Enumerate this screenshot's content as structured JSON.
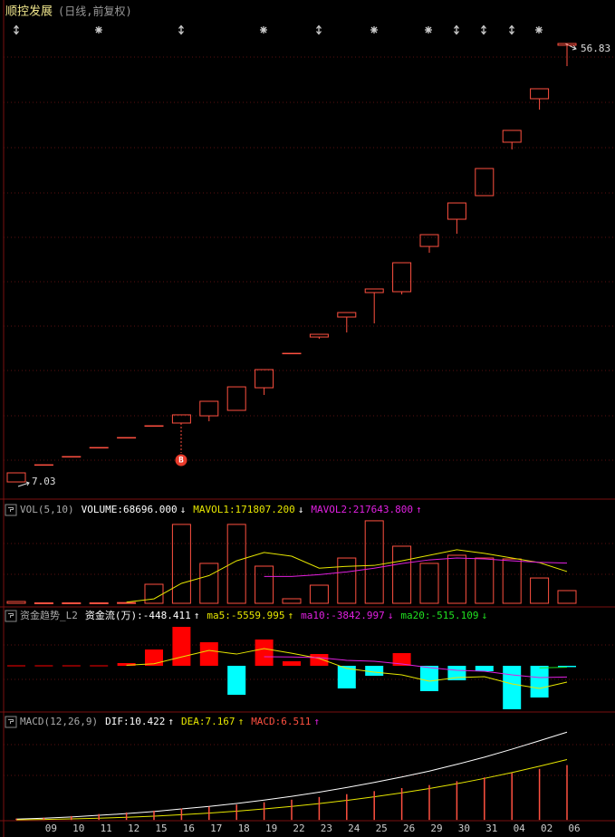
{
  "header": {
    "title": "顺控发展",
    "subtitle": "(日线,前复权)"
  },
  "chart_data": [
    {
      "type": "candlestick",
      "color": "#ff5040",
      "categories": [
        null,
        "09",
        "10",
        "11",
        "12",
        "15",
        "16",
        "17",
        "18",
        "19",
        "22",
        "23",
        "24",
        "25",
        "26",
        "29",
        "30",
        "31",
        "04",
        "02",
        "06"
      ],
      "open": [
        7.03,
        8.98,
        9.91,
        10.94,
        12.07,
        13.41,
        13.72,
        14.54,
        15.16,
        17.73,
        21.64,
        23.49,
        25.76,
        28.54,
        28.64,
        33.78,
        36.87,
        39.55,
        45.62,
        50.56,
        56.63
      ],
      "high": [
        8.06,
        8.98,
        9.91,
        10.94,
        12.07,
        13.41,
        14.65,
        16.19,
        17.83,
        19.79,
        21.64,
        23.8,
        26.27,
        28.95,
        31.93,
        35.12,
        38.72,
        42.63,
        46.96,
        51.69,
        56.83
      ],
      "low": [
        7.03,
        8.98,
        9.91,
        10.94,
        12.07,
        13.41,
        13.72,
        13.92,
        15.16,
        16.91,
        21.64,
        23.29,
        24.01,
        25.04,
        28.33,
        33.06,
        35.22,
        39.55,
        44.8,
        49.32,
        54.26
      ],
      "close": [
        8.06,
        8.98,
        9.91,
        10.94,
        12.07,
        13.41,
        14.65,
        16.19,
        17.83,
        19.79,
        21.64,
        23.8,
        26.27,
        28.95,
        31.93,
        35.12,
        38.72,
        42.63,
        46.96,
        51.69,
        56.83
      ],
      "low_mark": 7.03,
      "high_mark": 56.83,
      "signal": "B",
      "ylim": [
        5.18,
        59.2
      ]
    },
    {
      "type": "bar",
      "indicator": "VOL(5,10)",
      "ylim": [
        0,
        554000
      ],
      "series": [
        {
          "label": "VOLUME:68696.000",
          "arrow": "↓",
          "arrow_color": "#ffffff",
          "color": "#ff5040",
          "style": "hollow-bar",
          "values": [
            9800,
            2500,
            2500,
            2500,
            4000,
            103000,
            427000,
            216000,
            427000,
            201000,
            24500,
            98000,
            245000,
            446500,
            309000,
            216000,
            260000,
            245000,
            240000,
            137000,
            68696
          ]
        },
        {
          "label": "MAVOL1:171807.200",
          "arrow": "↓",
          "arrow_color": "#ffffff",
          "color": "#e6e600",
          "style": "line",
          "values": [
            null,
            null,
            null,
            null,
            6000,
            24000,
            108000,
            150000,
            230000,
            275000,
            255000,
            190000,
            200000,
            205000,
            230000,
            260000,
            290000,
            270000,
            245000,
            220000,
            171807.2
          ]
        },
        {
          "label": "MAVOL2:217643.800",
          "arrow": "↑",
          "arrow_color": "#e020e0",
          "color": "#e020e0",
          "style": "line",
          "values": [
            null,
            null,
            null,
            null,
            null,
            null,
            null,
            null,
            null,
            145000,
            145000,
            155000,
            170000,
            190000,
            215000,
            235000,
            245000,
            240000,
            230000,
            222000,
            217643.8
          ]
        }
      ]
    },
    {
      "type": "bar",
      "indicator": "资金趋势_L2",
      "ylim": [
        -15450,
        19158
      ],
      "series": [
        {
          "label": "资金流(万):-448.411",
          "arrow": "↑",
          "arrow_color": "#ffffff",
          "color": "#ff0000",
          "down_color": "#00ffff",
          "style": "signed-bar",
          "values": [
            150,
            150,
            150,
            150,
            927,
            5562,
            13287,
            8034,
            -9888,
            8961,
            1545,
            4017,
            -7725,
            -3399,
            4326,
            -8652,
            -4944,
            -1854,
            -14832,
            -10815,
            -448.411
          ]
        },
        {
          "label": "ma5:-5559.995",
          "arrow": "↑",
          "arrow_color": "#e6e600",
          "color": "#e6e600",
          "style": "line",
          "values": [
            null,
            null,
            null,
            null,
            200,
            700,
            3000,
            5250,
            4000,
            5870,
            4300,
            2500,
            -900,
            -2160,
            -3090,
            -5250,
            -4000,
            -3700,
            -6180,
            -7725,
            -5559.995
          ]
        },
        {
          "label": "ma10:-3842.997",
          "arrow": "↓",
          "arrow_color": "#e020e0",
          "color": "#e020e0",
          "style": "line",
          "values": [
            null,
            null,
            null,
            null,
            null,
            null,
            null,
            null,
            null,
            3090,
            3000,
            2780,
            1850,
            1545,
            618,
            -618,
            -1545,
            -1854,
            -3090,
            -4017,
            -3842.997
          ]
        },
        {
          "label": "ma20:-515.109",
          "arrow": "↓",
          "arrow_color": "#20e020",
          "color": "#20e020",
          "style": "line",
          "values": [
            null,
            null,
            null,
            null,
            null,
            null,
            null,
            null,
            null,
            null,
            null,
            null,
            null,
            null,
            null,
            null,
            null,
            null,
            null,
            -700,
            -515.109
          ]
        }
      ]
    },
    {
      "type": "bar",
      "indicator": "MACD(12,26,9)",
      "ylim": [
        -0.2,
        12.6
      ],
      "series": [
        {
          "label": "DIF:10.422",
          "arrow": "↑",
          "arrow_color": "#ffffff",
          "color": "#ffffff",
          "style": "line",
          "values": [
            0.1,
            0.2,
            0.35,
            0.55,
            0.75,
            1.0,
            1.3,
            1.6,
            1.95,
            2.35,
            2.8,
            3.3,
            3.85,
            4.45,
            5.1,
            5.8,
            6.6,
            7.45,
            8.4,
            9.4,
            10.422
          ]
        },
        {
          "label": "DEA:7.167",
          "arrow": "↑",
          "arrow_color": "#e6e600",
          "color": "#e6e600",
          "style": "line",
          "values": [
            0.02,
            0.06,
            0.12,
            0.2,
            0.31,
            0.45,
            0.62,
            0.81,
            1.04,
            1.3,
            1.6,
            1.94,
            2.32,
            2.74,
            3.21,
            3.73,
            4.3,
            4.93,
            5.62,
            6.37,
            7.167
          ]
        },
        {
          "label": "MACD:6.511",
          "arrow": "↑",
          "arrow_color": "#e020e0",
          "color": "#ff5040",
          "style": "stick",
          "values": [
            0.16,
            0.28,
            0.46,
            0.7,
            0.88,
            1.1,
            1.36,
            1.58,
            1.82,
            2.1,
            2.4,
            2.72,
            3.06,
            3.42,
            3.78,
            4.14,
            4.6,
            5.04,
            5.56,
            6.06,
            6.511
          ]
        }
      ]
    }
  ]
}
